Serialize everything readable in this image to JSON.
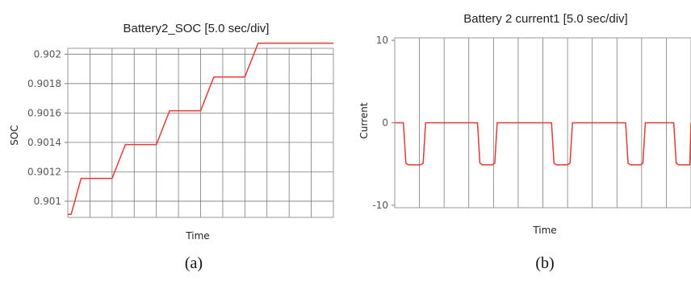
{
  "chart_data": [
    {
      "type": "line",
      "title": "Battery2_SOC [5.0 sec/div]",
      "xlabel": "Time",
      "ylabel": "SOC",
      "yticks": [
        "0.901",
        "0.9012",
        "0.9014",
        "0.9016",
        "0.9018",
        "0.902"
      ],
      "ylim": [
        0.90089,
        0.90204
      ],
      "x_divisions": 12,
      "xlim": [
        0,
        12
      ],
      "grid": true,
      "series": [
        {
          "color": "#e53935",
          "x": [
            0,
            0.15,
            0.6,
            2.0,
            2.6,
            4.0,
            4.6,
            6.0,
            6.6,
            8.0,
            8.6,
            10.0,
            10.6,
            11.8,
            12.0
          ],
          "y": [
            0.90091,
            0.90091,
            0.901155,
            0.901155,
            0.901385,
            0.901385,
            0.901615,
            0.901615,
            0.901845,
            0.901845,
            0.902075,
            0.902075,
            0.902075,
            0.902075,
            0.902075
          ]
        }
      ],
      "caption": "(a)"
    },
    {
      "type": "line",
      "title": "Battery 2 current1 [5.0 sec/div]",
      "xlabel": "Time",
      "ylabel": "Current",
      "yticks": [
        "10",
        "0",
        "-10"
      ],
      "ylim": [
        -10.3,
        10.3
      ],
      "x_divisions": 12,
      "xlim": [
        0,
        12
      ],
      "grid": true,
      "series": [
        {
          "color": "#e53935",
          "x": [
            0,
            0.35,
            0.45,
            0.55,
            1.05,
            1.15,
            1.25,
            3.35,
            3.45,
            3.55,
            3.95,
            4.05,
            4.15,
            6.35,
            6.45,
            6.55,
            7.0,
            7.1,
            7.2,
            9.35,
            9.45,
            9.55,
            9.95,
            10.05,
            10.15,
            11.3,
            11.4,
            11.5,
            11.95,
            12.0
          ],
          "y": [
            0,
            0,
            -4.9,
            -5.1,
            -5.1,
            -4.9,
            0,
            0,
            -4.9,
            -5.1,
            -5.1,
            -4.9,
            0,
            0,
            -4.9,
            -5.1,
            -5.1,
            -4.9,
            0,
            0,
            -4.9,
            -5.1,
            -5.1,
            -4.9,
            0,
            0,
            -4.9,
            -5.1,
            -5.1,
            0
          ]
        }
      ],
      "caption": "(b)"
    }
  ]
}
